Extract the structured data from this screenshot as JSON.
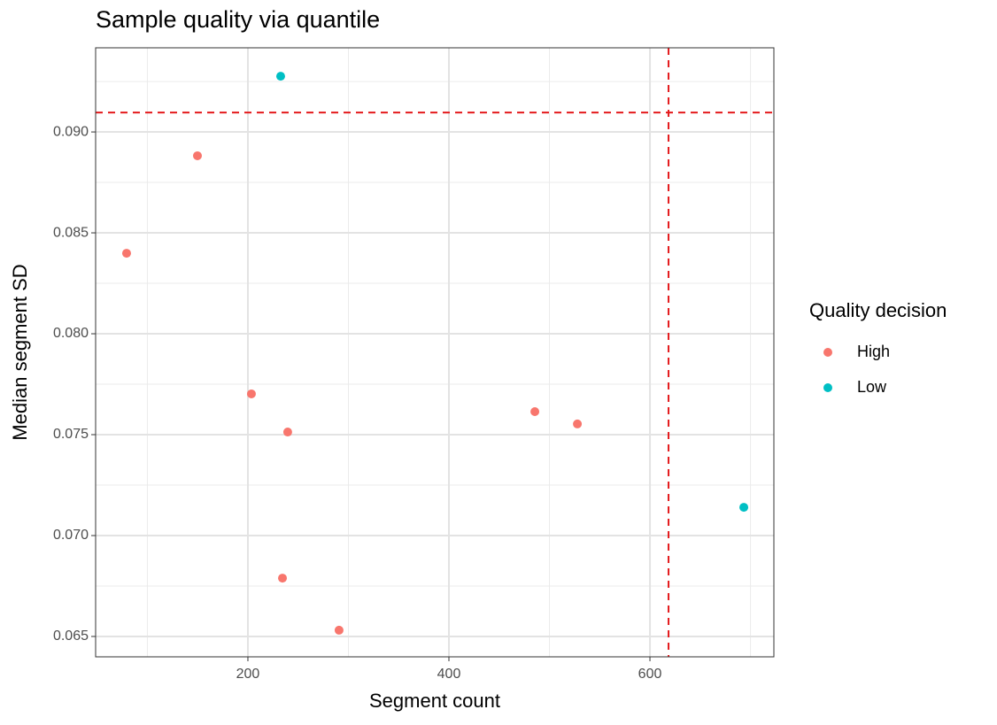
{
  "chart_data": {
    "type": "scatter",
    "title": "Sample quality via quantile",
    "x_label": "Segment count",
    "y_label": "Median segment SD",
    "legend_title": "Quality decision",
    "legend_position": "right",
    "grid": true,
    "xlim": [
      48.5,
      723.3
    ],
    "ylim": [
      0.06399,
      0.09417
    ],
    "xticks": [
      200,
      400,
      600
    ],
    "yticks": [
      {
        "value": 0.065,
        "label": "0.065"
      },
      {
        "value": 0.07,
        "label": "0.070"
      },
      {
        "value": 0.075,
        "label": "0.075"
      },
      {
        "value": 0.08,
        "label": "0.080"
      },
      {
        "value": 0.085,
        "label": "0.085"
      },
      {
        "value": 0.09,
        "label": "0.090"
      }
    ],
    "x_minor_breaks": [
      100,
      300,
      500,
      700
    ],
    "y_minor_breaks": [
      0.0675,
      0.0725,
      0.0775,
      0.0825,
      0.0875,
      0.0925
    ],
    "reference_lines": {
      "x": 618.5,
      "y": 0.09096,
      "color": "#e41a1c"
    },
    "series": [
      {
        "name": "High",
        "color": "#F8766D",
        "x": [
          149.8,
          79.3,
          203.5,
          239.6,
          485.5,
          527.8,
          234.4,
          290.7
        ],
        "values": [
          0.08882,
          0.08399,
          0.07702,
          0.07513,
          0.07614,
          0.07553,
          0.06789,
          0.06531
        ]
      },
      {
        "name": "Low",
        "color": "#00BFC4",
        "x": [
          232.6,
          693.4
        ],
        "values": [
          0.09276,
          0.0714
        ]
      }
    ]
  }
}
